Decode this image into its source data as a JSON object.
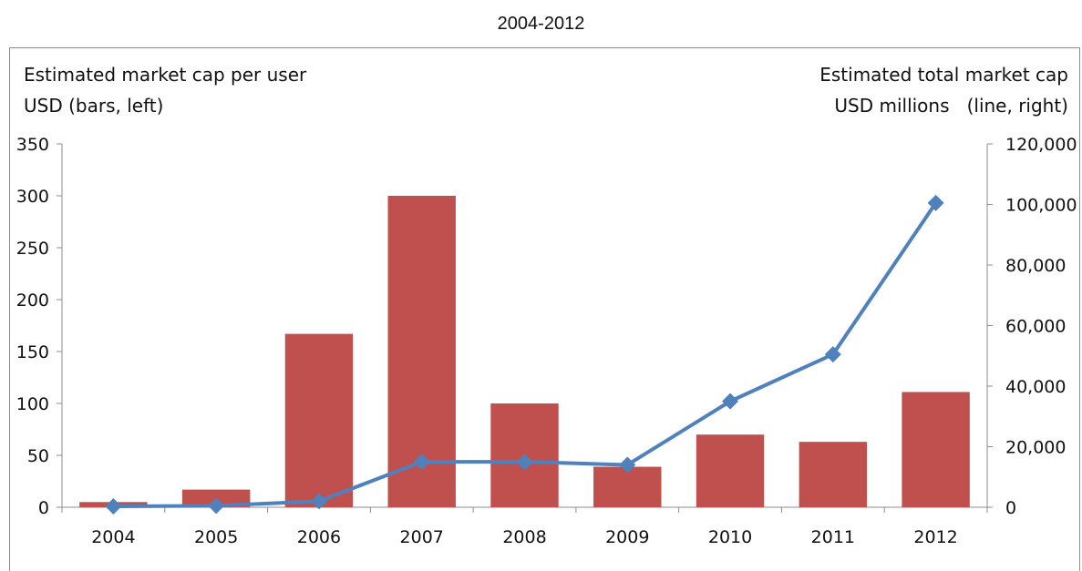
{
  "title": "2004-2012",
  "captions": {
    "left_line1": "Estimated market cap per user",
    "left_line2": "USD (bars, left)",
    "right_line1": "Estimated total market cap",
    "right_line2": "USD millions   (line, right)"
  },
  "colors": {
    "bars": "#c0504d",
    "line": "#4f81bd",
    "axis": "#8c8c8c"
  },
  "chart_data": {
    "type": "bar",
    "categories": [
      "2004",
      "2005",
      "2006",
      "2007",
      "2008",
      "2009",
      "2010",
      "2011",
      "2012"
    ],
    "series": [
      {
        "type": "bar",
        "axis": "left",
        "values": [
          5,
          17,
          167,
          300,
          100,
          39,
          70,
          63,
          111
        ]
      },
      {
        "type": "line",
        "axis": "right",
        "marker": "diamond",
        "values": [
          300,
          500,
          2000,
          15000,
          15000,
          14000,
          35000,
          50500,
          100500
        ]
      }
    ],
    "y_left": {
      "ylim": [
        0,
        350
      ],
      "ticks": [
        0,
        50,
        100,
        150,
        200,
        250,
        300,
        350
      ],
      "tick_labels": [
        "0",
        "50",
        "100",
        "150",
        "200",
        "250",
        "300",
        "350"
      ]
    },
    "y_right": {
      "ylim": [
        0,
        120000
      ],
      "ticks": [
        0,
        20000,
        40000,
        60000,
        80000,
        100000,
        120000
      ],
      "tick_labels": [
        "0",
        "20,000",
        "40,000",
        "60,000",
        "80,000",
        "100,000",
        "120,000"
      ]
    },
    "grid": false,
    "legend": "none"
  }
}
